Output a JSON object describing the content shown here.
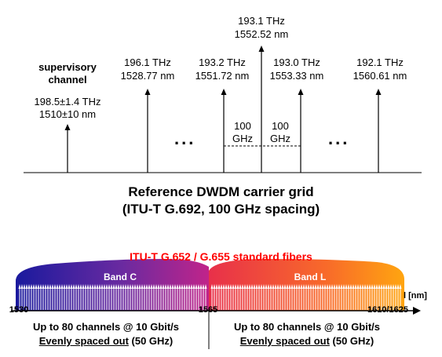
{
  "carriers": [
    {
      "freq": "196.1 THz",
      "wl": "1528.77 nm"
    },
    {
      "freq": "193.2 THz",
      "wl": "1551.72 nm"
    },
    {
      "freq": "193.1 THz",
      "wl": "1552.52 nm"
    },
    {
      "freq": "193.0 THz",
      "wl": "1553.33 nm"
    },
    {
      "freq": "192.1 THz",
      "wl": "1560.61 nm"
    }
  ],
  "supervisory": {
    "label_line1": "supervisory",
    "label_line2": "channel",
    "freq": "198.5±1.4 THz",
    "wl": "1510±10 nm"
  },
  "spacing": {
    "left_value": "100",
    "left_unit": "GHz",
    "right_value": "100",
    "right_unit": "GHz"
  },
  "ellipsis": "...",
  "grid_title": {
    "line1": "Reference DWDM carrier grid",
    "line2": "(ITU-T G.692, 100 GHz spacing)"
  },
  "fiber_title": "ITU-T G.652 / G.655 standard fibers",
  "bands": [
    {
      "name": "Band C",
      "start_tick": "1530",
      "end_tick": "1565"
    },
    {
      "name": "Band L",
      "start_tick": "1565",
      "end_tick": "1610/1625"
    }
  ],
  "axis_unit": "l [nm]",
  "band_c_info": {
    "line1": "Up to 80 channels @ 10 Gbit/s",
    "line2_underlined": "Evenly spaced out",
    "line2_rest": " (50 GHz)"
  },
  "band_l_info": {
    "line1": "Up to 80 channels @ 10 Gbit/s",
    "line2_underlined": "Evenly spaced out",
    "line2_rest": " (50 GHz)"
  },
  "colors": {
    "band_c_start": "#1a1a9e",
    "band_c_end": "#c0248a",
    "band_l_start": "#e8304a",
    "band_l_end": "#ffa510",
    "fiber_title": "#ff0000"
  }
}
